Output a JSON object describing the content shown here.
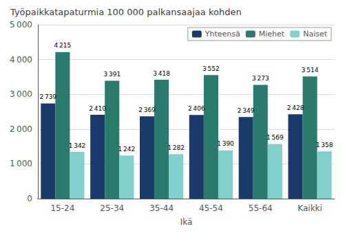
{
  "chart_data": {
    "type": "bar",
    "title": "Työpaikkatapaturmia 100 000 palkansaajaa kohden",
    "xlabel": "Ikä",
    "categories": [
      "15-24",
      "25-34",
      "35-44",
      "45-54",
      "55-64",
      "Kaikki"
    ],
    "series": [
      {
        "name": "Yhteensä",
        "color": "#1a3a6b",
        "values": [
          2739,
          2410,
          2369,
          2406,
          2349,
          2428
        ],
        "value_labels": [
          "2 739",
          "2 410",
          "2 369",
          "2 406",
          "2 349",
          "2 428"
        ]
      },
      {
        "name": "Miehet",
        "color": "#2b7a6e",
        "values": [
          4215,
          3391,
          3418,
          3552,
          3273,
          3514
        ],
        "value_labels": [
          "4 215",
          "3 391",
          "3 418",
          "3 552",
          "3 273",
          "3 514"
        ]
      },
      {
        "name": "Naiset",
        "color": "#80d0cc",
        "values": [
          1342,
          1242,
          1282,
          1390,
          1569,
          1358
        ],
        "value_labels": [
          "1 342",
          "1 242",
          "1 282",
          "1 390",
          "1 569",
          "1 358"
        ]
      }
    ],
    "ylim": [
      0,
      5000
    ],
    "yticks": [
      0,
      {
        "value": 1000,
        "label": "1 000"
      },
      {
        "value": 2000,
        "label": "2 000"
      },
      {
        "value": 3000,
        "label": "3 000"
      },
      {
        "value": 4000,
        "label": "4 000"
      },
      {
        "value": 5000,
        "label": "5 000"
      }
    ],
    "grid": true,
    "legend": "upper right",
    "data_labels": true
  }
}
